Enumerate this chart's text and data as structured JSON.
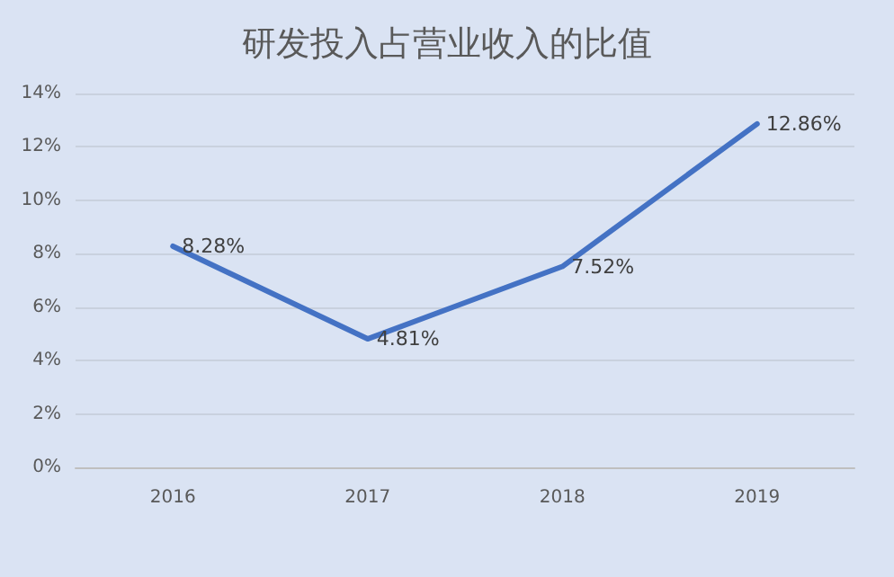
{
  "chart_data": {
    "type": "line",
    "title": "研发投入占营业收入的比值",
    "categories": [
      "2016",
      "2017",
      "2018",
      "2019"
    ],
    "series": [
      {
        "color": "#4472c4",
        "values": [
          8.28,
          4.81,
          7.52,
          12.86
        ],
        "value_labels": [
          "8.28%",
          "4.81%",
          "7.52%",
          "12.86%"
        ]
      }
    ],
    "ylim": [
      0,
      14
    ],
    "yticks": [
      {
        "value": 0,
        "label": "0%"
      },
      {
        "value": 2,
        "label": "2%"
      },
      {
        "value": 4,
        "label": "4%"
      },
      {
        "value": 6,
        "label": "6%"
      },
      {
        "value": 8,
        "label": "8%"
      },
      {
        "value": 10,
        "label": "10%"
      },
      {
        "value": 12,
        "label": "12%"
      },
      {
        "value": 14,
        "label": "14%"
      }
    ],
    "grid": "y",
    "marker": "none",
    "line_style": "solid"
  }
}
